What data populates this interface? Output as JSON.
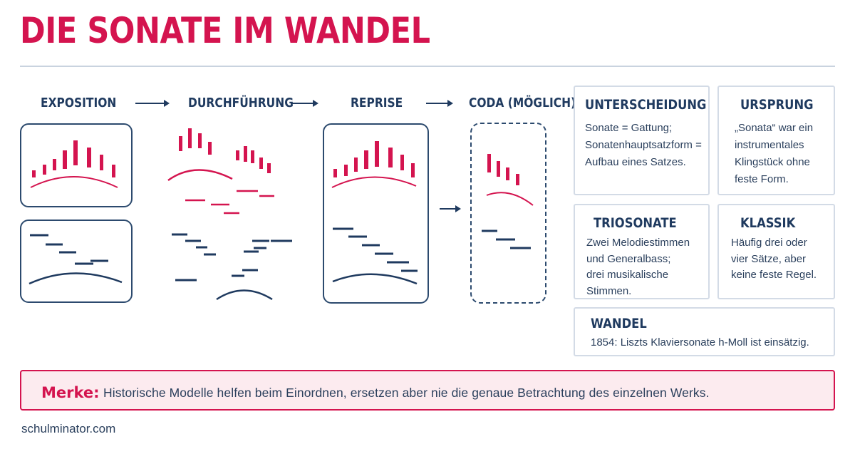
{
  "title": "DIE SONATE IM WANDEL",
  "stages": [
    {
      "label": "EXPOSITION"
    },
    {
      "label": "DURCHFÜHRUNG"
    },
    {
      "label": "REPRISE"
    },
    {
      "label": "CODA (MÖGLICH)"
    }
  ],
  "cards": {
    "unterscheidung": {
      "title": "UNTERSCHEIDUNG",
      "text": "Sonate = Gattung;\nSonatenhauptsatzform =\nAufbau eines Satzes."
    },
    "ursprung": {
      "title": "URSPRUNG",
      "text": "„Sonata“ war ein\ninstrumentales\nKlingstück ohne\nfeste Form."
    },
    "triosonate": {
      "title": "TRIOSONATE",
      "text": "Zwei Melodiestimmen\nund Generalbass;\ndrei musikalische\nStimmen."
    },
    "klassik": {
      "title": "KLASSIK",
      "text": "Häufig drei oder\nvier Sätze, aber\nkeine feste Regel."
    },
    "wandel": {
      "title": "WANDEL",
      "text": "1854: Liszts Klaviersonate h-Moll ist einsätzig."
    }
  },
  "merke": {
    "label": "Merke:",
    "text": "Historische Modelle helfen beim Einordnen, ersetzen aber nie die genaue Betrachtung des einzelnen Werks."
  },
  "footer": "schulminator.com",
  "colors": {
    "accent": "#d4144f",
    "navy": "#1f3a5f"
  }
}
